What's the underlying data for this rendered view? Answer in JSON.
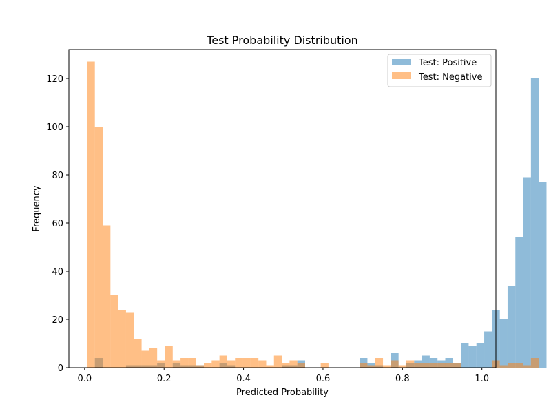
{
  "chart_data": {
    "type": "bar",
    "title": "Test Probability Distribution",
    "xlabel": "Predicted Probability",
    "ylabel": "Frequency",
    "xlim": [
      -0.0396,
      1.0352
    ],
    "ylim": [
      0,
      132
    ],
    "xticks": [
      0.0,
      0.2,
      0.4,
      0.6,
      0.8,
      1.0
    ],
    "xtick_labels": [
      "0.0",
      "0.2",
      "0.4",
      "0.6",
      "0.8",
      "1.0"
    ],
    "yticks": [
      0,
      20,
      40,
      60,
      80,
      100,
      120
    ],
    "ytick_labels": [
      "0",
      "20",
      "40",
      "60",
      "80",
      "100",
      "120"
    ],
    "grid": false,
    "legend_position": "top-right",
    "series": [
      {
        "name": "Test: Positive",
        "color": "#1f77b4",
        "opacity": 0.5,
        "bin_start": 0.0062,
        "bin_width": 0.0196,
        "counts": [
          0,
          4,
          0,
          0,
          0,
          1,
          1,
          1,
          1,
          2,
          0,
          2,
          1,
          1,
          1,
          0,
          0,
          2,
          1,
          0,
          0,
          0,
          0,
          0,
          0,
          1,
          1,
          3,
          0,
          0,
          0,
          0,
          0,
          0,
          0,
          4,
          2,
          1,
          0,
          6,
          0,
          2,
          3,
          5,
          4,
          3,
          4,
          2,
          10,
          9,
          10,
          15,
          24,
          20,
          34,
          54,
          79,
          120,
          77,
          0
        ]
      },
      {
        "name": "Test: Negative",
        "color": "#ff7f0e",
        "opacity": 0.5,
        "bin_start": 0.0062,
        "bin_width": 0.0196,
        "counts": [
          127,
          100,
          59,
          30,
          24,
          23,
          12,
          7,
          8,
          3,
          9,
          3,
          4,
          4,
          1,
          2,
          3,
          5,
          3,
          4,
          4,
          4,
          3,
          1,
          5,
          2,
          3,
          2,
          0,
          0,
          2,
          0,
          0,
          0,
          0,
          2,
          1,
          4,
          1,
          3,
          1,
          3,
          2,
          2,
          2,
          2,
          2,
          2,
          0,
          0,
          0,
          0,
          3,
          1,
          2,
          2,
          1,
          4,
          0,
          0
        ]
      }
    ]
  }
}
